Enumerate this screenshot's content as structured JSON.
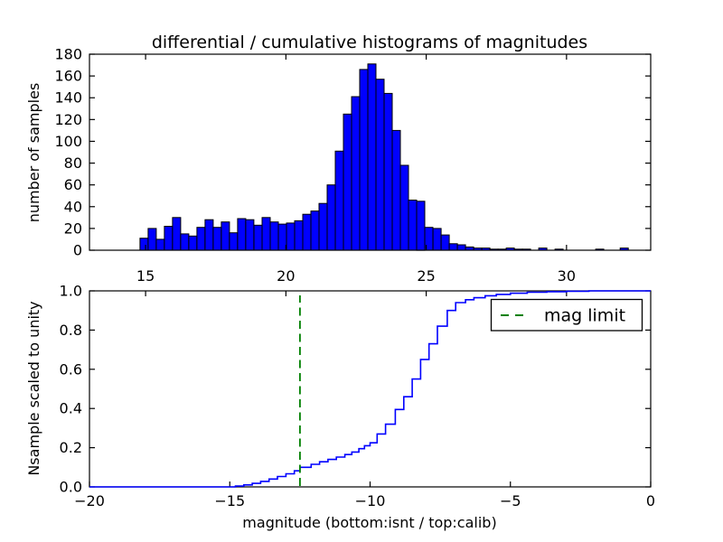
{
  "title": "differential / cumulative histograms of magnitudes",
  "colors": {
    "background": "#ffffff",
    "bar_fill": "#0000ff",
    "bar_edge": "#000000",
    "curve": "#0000ff",
    "mag_limit_line": "#008000",
    "axis": "#000000"
  },
  "legend": {
    "label": "mag limit"
  },
  "chart_data": [
    {
      "type": "bar",
      "role": "differential-histogram",
      "ylabel": "number of samples",
      "xlim": [
        13.0,
        33.0
      ],
      "ylim": [
        0,
        180
      ],
      "xticks": {
        "values": [
          15,
          20,
          25,
          30
        ],
        "labels": [
          "15",
          "20",
          "25",
          "30"
        ],
        "labels_visible": false
      },
      "yticks": {
        "values": [
          0,
          20,
          40,
          60,
          80,
          100,
          120,
          140,
          160,
          180
        ],
        "labels": [
          "0",
          "20",
          "40",
          "60",
          "80",
          "100",
          "120",
          "140",
          "160",
          "180"
        ]
      },
      "bins": {
        "start": 14.8,
        "width": 0.29
      },
      "counts": [
        11,
        20,
        10,
        22,
        30,
        15,
        13,
        21,
        28,
        21,
        26,
        16,
        29,
        28,
        23,
        30,
        26,
        24,
        25,
        27,
        33,
        36,
        43,
        60,
        91,
        125,
        141,
        166,
        171,
        157,
        144,
        110,
        78,
        46,
        45,
        21,
        20,
        14,
        6,
        5,
        3,
        2,
        2,
        1,
        1,
        2,
        1,
        1,
        0,
        2,
        0,
        1,
        0,
        0,
        0,
        0,
        1,
        0,
        0,
        2
      ]
    },
    {
      "type": "line",
      "role": "cumulative-histogram-step",
      "ylabel": "Nsample scaled to unity",
      "xlabel": "magnitude (bottom:isnt / top:calib)",
      "xlim": [
        -20,
        0
      ],
      "ylim": [
        0.0,
        1.0
      ],
      "xticks": {
        "values": [
          -20,
          -15,
          -10,
          -5,
          0
        ],
        "labels": [
          "−20",
          "−15",
          "−10",
          "−5",
          "0"
        ]
      },
      "yticks": {
        "values": [
          0.0,
          0.2,
          0.4,
          0.6,
          0.8,
          1.0
        ],
        "labels": [
          "0.0",
          "0.2",
          "0.4",
          "0.6",
          "0.8",
          "1.0"
        ]
      },
      "top_axis": {
        "scale": "calib",
        "values": [
          15,
          20,
          25,
          30
        ],
        "labels": [
          "15",
          "20",
          "25",
          "30"
        ]
      },
      "mag_limit": {
        "x": -12.5,
        "color": "#008000",
        "style": "dashed"
      },
      "curve": [
        [
          -20,
          0
        ],
        [
          -15,
          0
        ],
        [
          -14.8,
          0.004
        ],
        [
          -14.5,
          0.01
        ],
        [
          -14.2,
          0.018
        ],
        [
          -13.9,
          0.028
        ],
        [
          -13.6,
          0.04
        ],
        [
          -13.3,
          0.053
        ],
        [
          -13.0,
          0.067
        ],
        [
          -12.7,
          0.082
        ],
        [
          -12.5,
          0.1
        ],
        [
          -12.1,
          0.115
        ],
        [
          -11.8,
          0.128
        ],
        [
          -11.5,
          0.14
        ],
        [
          -11.2,
          0.152
        ],
        [
          -10.9,
          0.165
        ],
        [
          -10.65,
          0.178
        ],
        [
          -10.4,
          0.195
        ],
        [
          -10.2,
          0.21
        ],
        [
          -10.0,
          0.225
        ],
        [
          -9.75,
          0.27
        ],
        [
          -9.45,
          0.32
        ],
        [
          -9.1,
          0.395
        ],
        [
          -8.8,
          0.46
        ],
        [
          -8.5,
          0.55
        ],
        [
          -8.2,
          0.65
        ],
        [
          -7.9,
          0.73
        ],
        [
          -7.6,
          0.82
        ],
        [
          -7.25,
          0.9
        ],
        [
          -6.95,
          0.94
        ],
        [
          -6.6,
          0.955
        ],
        [
          -6.3,
          0.965
        ],
        [
          -5.9,
          0.975
        ],
        [
          -5.5,
          0.982
        ],
        [
          -5.0,
          0.988
        ],
        [
          -4.4,
          0.993
        ],
        [
          -3.7,
          0.996
        ],
        [
          -3.0,
          0.998
        ],
        [
          -2.2,
          1.0
        ],
        [
          0,
          1.0
        ]
      ]
    }
  ]
}
